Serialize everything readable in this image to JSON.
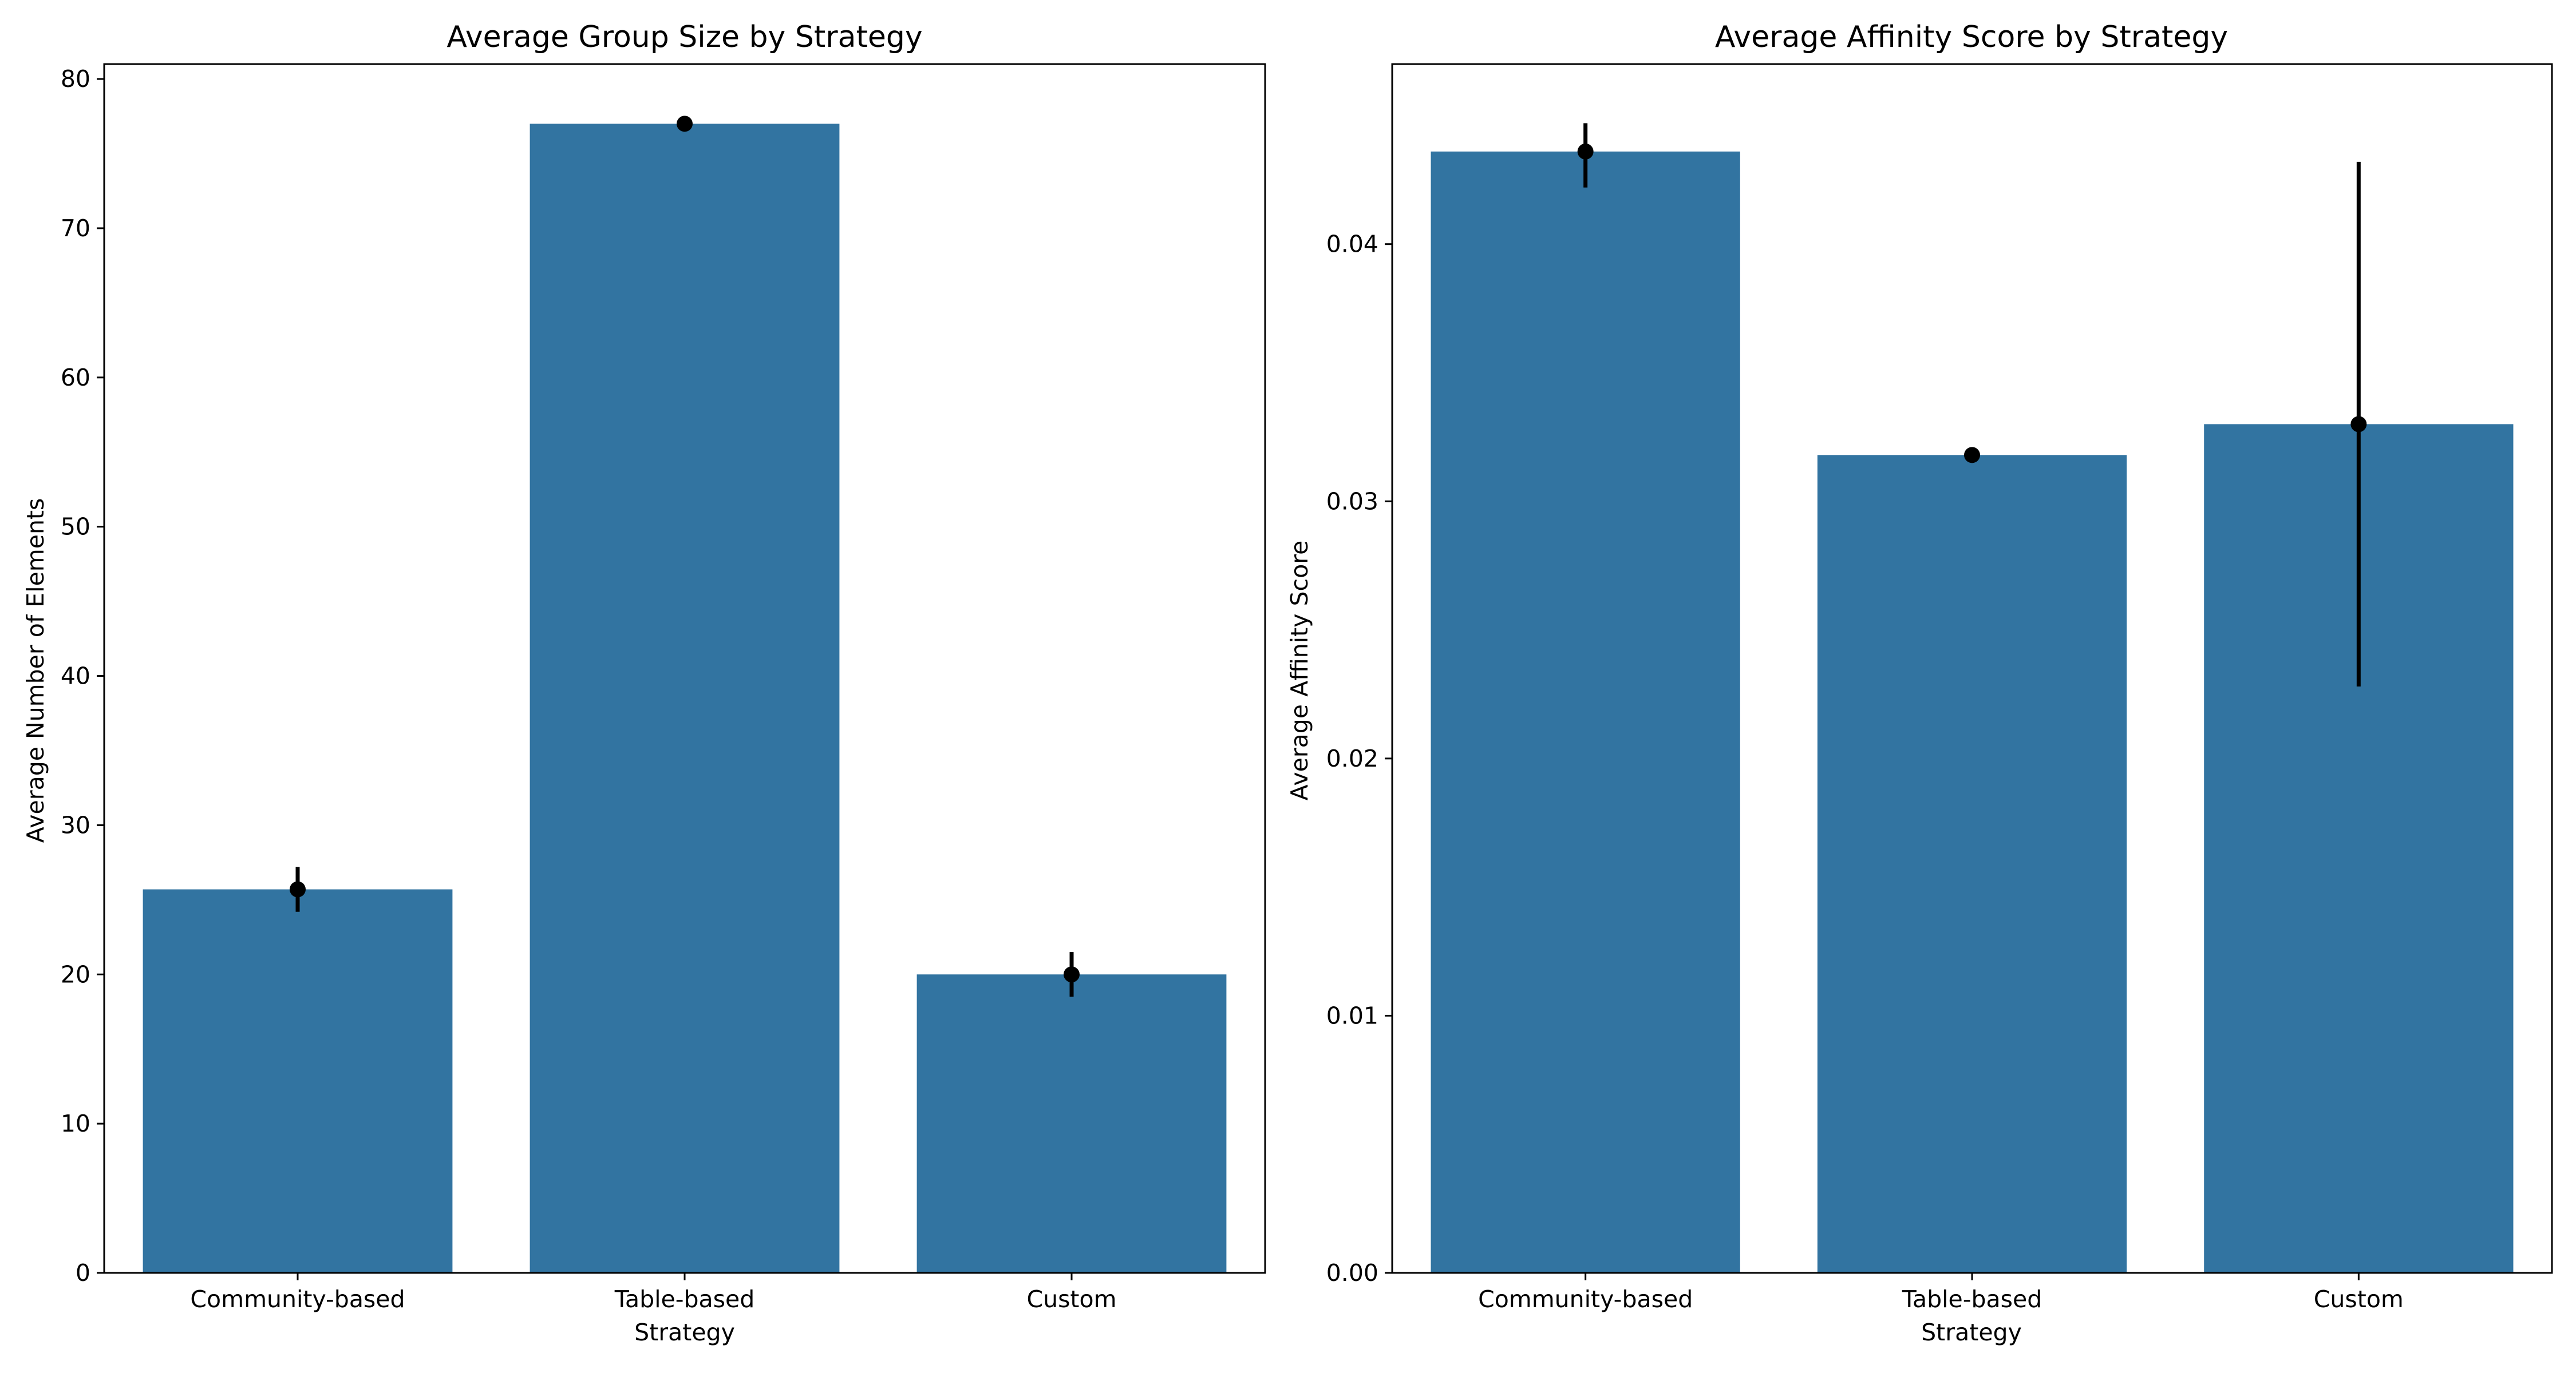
{
  "chart_data": [
    {
      "type": "bar",
      "title": "Average Group Size by Strategy",
      "xlabel": "Strategy",
      "ylabel": "Average Number of Elements",
      "categories": [
        "Community-based",
        "Table-based",
        "Custom"
      ],
      "values": [
        25.7,
        77.0,
        20.0
      ],
      "error_low": [
        24.2,
        76.9,
        18.5
      ],
      "error_high": [
        27.2,
        77.1,
        21.5
      ],
      "ylim": [
        0,
        81
      ],
      "yticks": [
        0,
        10,
        20,
        30,
        40,
        50,
        60,
        70,
        80
      ],
      "ytick_labels": [
        "0",
        "10",
        "20",
        "30",
        "40",
        "50",
        "60",
        "70",
        "80"
      ],
      "grid": false,
      "bar_color": "#3274a1",
      "error_color": "#000000"
    },
    {
      "type": "bar",
      "title": "Average Affinity Score by Strategy",
      "xlabel": "Strategy",
      "ylabel": "Average Affinity Score",
      "categories": [
        "Community-based",
        "Table-based",
        "Custom"
      ],
      "values": [
        0.0436,
        0.0318,
        0.033
      ],
      "error_low": [
        0.0422,
        0.0317,
        0.0228
      ],
      "error_high": [
        0.0447,
        0.0319,
        0.0432
      ],
      "ylim": [
        0,
        0.047
      ],
      "yticks": [
        0,
        0.01,
        0.02,
        0.03,
        0.04
      ],
      "ytick_labels": [
        "0.00",
        "0.01",
        "0.02",
        "0.03",
        "0.04"
      ],
      "grid": false,
      "bar_color": "#3274a1",
      "error_color": "#000000"
    }
  ]
}
